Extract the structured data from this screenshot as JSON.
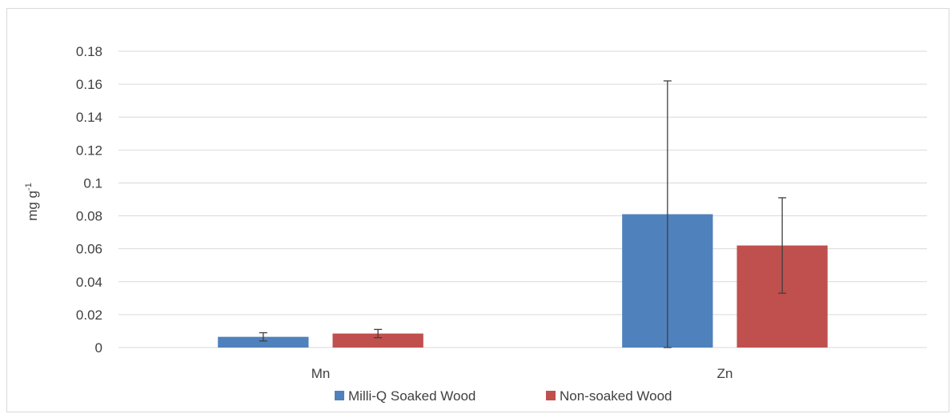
{
  "chart_data": {
    "type": "bar",
    "categories": [
      "Mn",
      "Zn"
    ],
    "series": [
      {
        "name": "Milli-Q Soaked Wood",
        "color": "#4f81bd",
        "values": [
          0.0065,
          0.081
        ],
        "error": [
          0.0025,
          0.081
        ]
      },
      {
        "name": "Non-soaked Wood",
        "color": "#c0504d",
        "values": [
          0.0085,
          0.062
        ],
        "error": [
          0.0025,
          0.029
        ]
      }
    ],
    "title": "",
    "xlabel": "",
    "ylabel": "mg g",
    "ylabel_superscript": "-1",
    "ylim": [
      0,
      0.18
    ],
    "yticks": [
      0,
      0.02,
      0.04,
      0.06,
      0.08,
      0.1,
      0.12,
      0.14,
      0.16,
      0.18
    ],
    "ytick_labels": [
      "0",
      "0.02",
      "0.04",
      "0.06",
      "0.08",
      "0.1",
      "0.12",
      "0.14",
      "0.16",
      "0.18"
    ],
    "grid": true,
    "legend_position": "bottom",
    "gridline_color": "#d9d9d9",
    "errorbar_color": "#404040"
  }
}
